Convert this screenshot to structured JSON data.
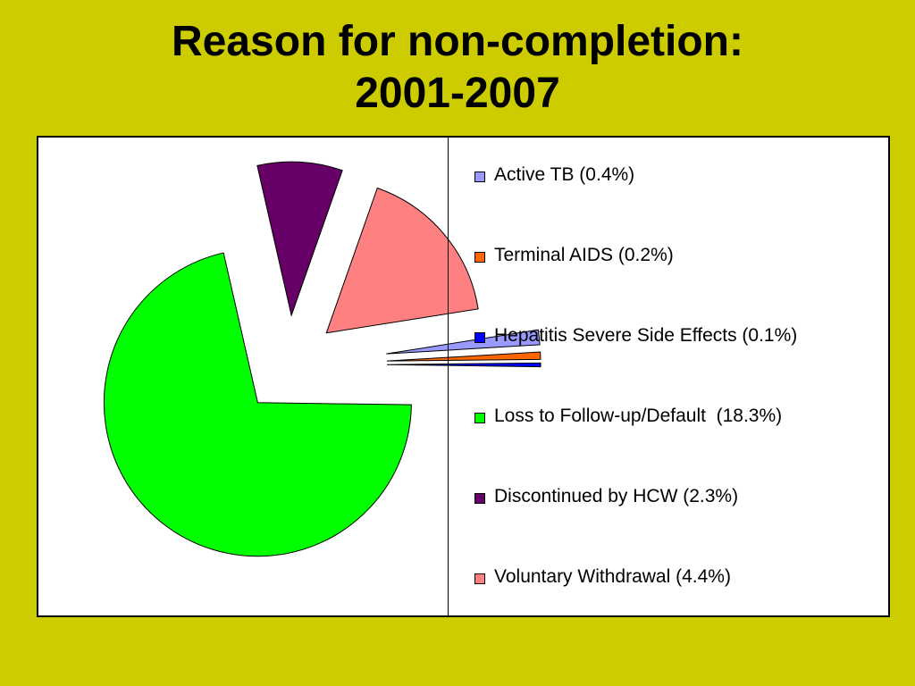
{
  "slide": {
    "title_line1": "Reason for non-completion:",
    "title_line2": "2001-2007"
  },
  "chart_data": {
    "type": "pie",
    "title": "Reason for non-completion: 2001-2007",
    "legend_position": "right",
    "slices": [
      {
        "label": "Active TB (0.4%)",
        "value": 0.4,
        "color": "#9999ff"
      },
      {
        "label": "Terminal AIDS (0.2%)",
        "value": 0.2,
        "color": "#ff6600"
      },
      {
        "label": "Hepatitis Severe Side Effects (0.1%)",
        "value": 0.1,
        "color": "#0000ff"
      },
      {
        "label": "Loss to Follow-up/Default  (18.3%)",
        "value": 18.3,
        "color": "#00ff00"
      },
      {
        "label": "Discontinued by HCW (2.3%)",
        "value": 2.3,
        "color": "#660066"
      },
      {
        "label": "Voluntary Withdrawal (4.4%)",
        "value": 4.4,
        "color": "#ff8080"
      }
    ]
  }
}
